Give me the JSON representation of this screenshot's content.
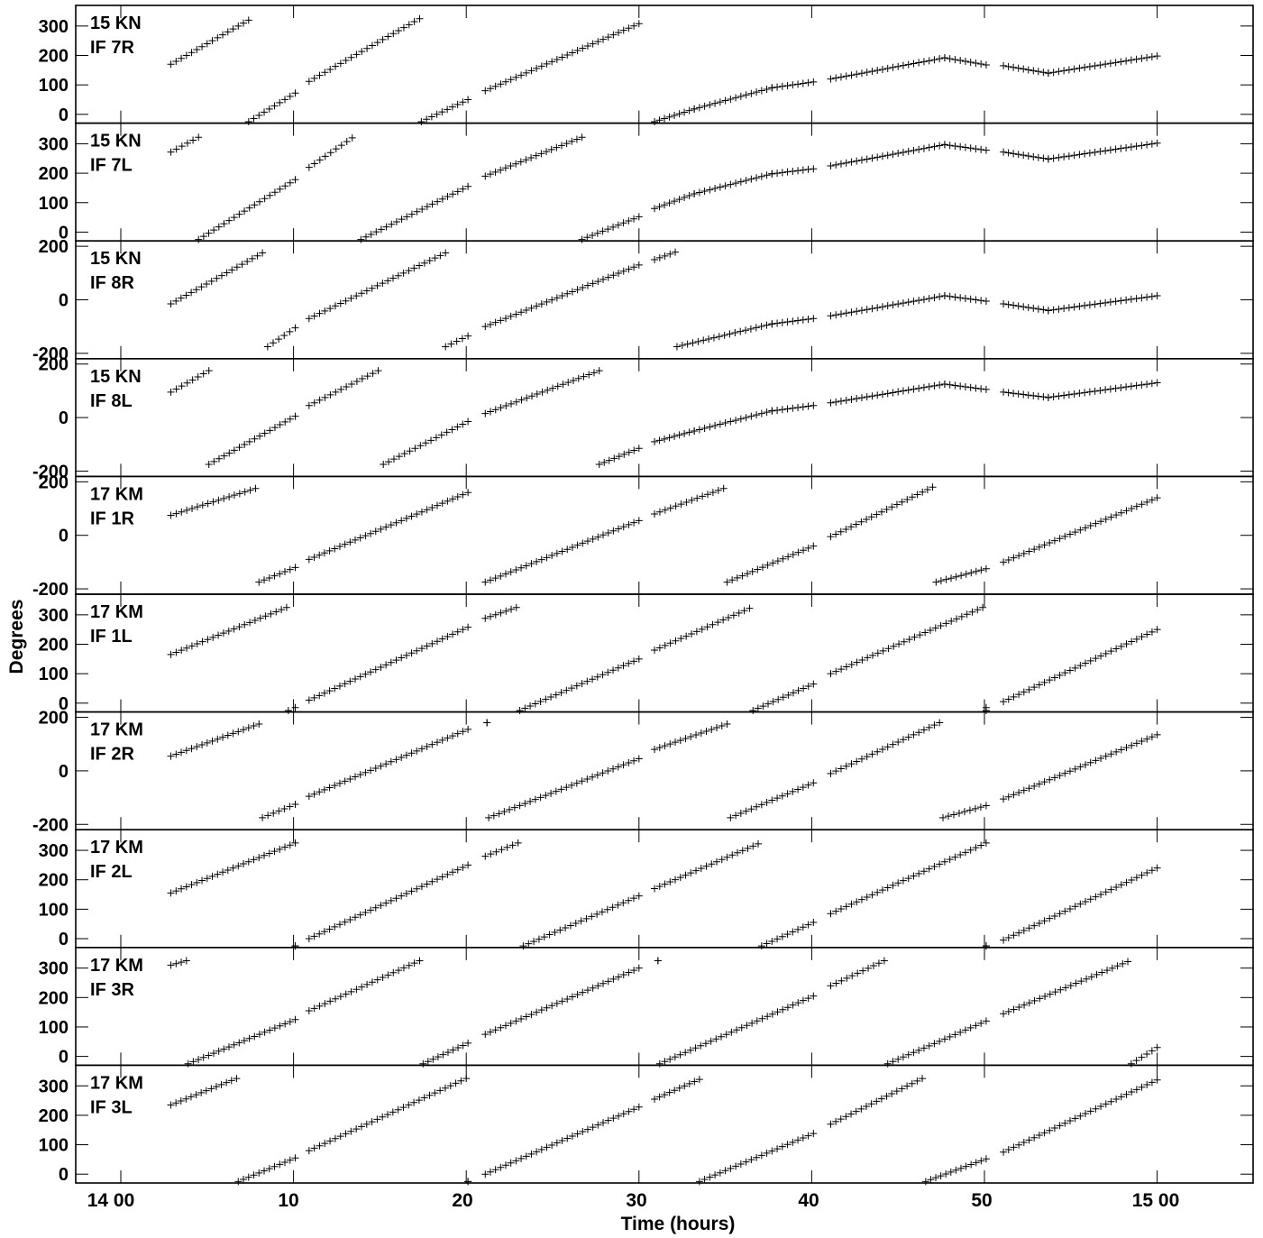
{
  "figure": {
    "title": "",
    "xlabel": "Time (hours)",
    "ylabel": "Degrees",
    "x_tick_labels": [
      "14 00",
      "10",
      "20",
      "30",
      "40",
      "50",
      "15 00"
    ],
    "colors": {
      "marks": "#000000",
      "axes": "#000000",
      "background": "#ffffff"
    }
  },
  "chart_data": [
    {
      "type": "scatter",
      "label1": "15 KN",
      "label2": "IF 7R",
      "ylim": [
        -30,
        370
      ],
      "yticks": [
        0,
        100,
        200,
        300
      ],
      "segments": [
        [
          2.9,
          7.4,
          170,
          320
        ],
        [
          7.4,
          10.1,
          -25,
          72
        ],
        [
          10.9,
          17.3,
          112,
          325
        ],
        [
          17.4,
          20.1,
          -25,
          50
        ],
        [
          21.1,
          30.0,
          80,
          308
        ],
        [
          30.9,
          33.2,
          -25,
          18
        ],
        [
          33.2,
          37.7,
          18,
          90
        ],
        [
          37.7,
          40.1,
          90,
          110
        ],
        [
          41.1,
          47.7,
          120,
          192
        ],
        [
          47.7,
          50.1,
          192,
          168
        ],
        [
          51.1,
          53.7,
          165,
          140
        ],
        [
          53.7,
          60.0,
          140,
          198
        ]
      ]
    },
    {
      "type": "scatter",
      "label1": "15 KN",
      "label2": "IF 7L",
      "ylim": [
        -30,
        370
      ],
      "yticks": [
        0,
        100,
        200,
        300
      ],
      "segments": [
        [
          2.9,
          4.5,
          272,
          322
        ],
        [
          4.5,
          10.1,
          -25,
          178
        ],
        [
          10.9,
          13.4,
          220,
          320
        ],
        [
          13.9,
          20.1,
          -25,
          155
        ],
        [
          21.1,
          26.7,
          190,
          322
        ],
        [
          26.7,
          30.0,
          -25,
          52
        ],
        [
          30.9,
          33.2,
          80,
          130
        ],
        [
          33.2,
          37.7,
          130,
          198
        ],
        [
          37.7,
          40.1,
          198,
          215
        ],
        [
          41.1,
          47.7,
          225,
          297
        ],
        [
          47.7,
          50.1,
          297,
          278
        ],
        [
          51.1,
          53.7,
          272,
          248
        ],
        [
          53.7,
          60.0,
          248,
          302
        ]
      ]
    },
    {
      "type": "scatter",
      "label1": "15 KN",
      "label2": "IF 8R",
      "ylim": [
        -220,
        220
      ],
      "yticks": [
        -200,
        0,
        200
      ],
      "segments": [
        [
          2.9,
          8.2,
          -15,
          175
        ],
        [
          8.5,
          10.1,
          -175,
          -105
        ],
        [
          10.9,
          18.8,
          -70,
          175
        ],
        [
          18.8,
          20.1,
          -175,
          -135
        ],
        [
          21.1,
          30.0,
          -100,
          130
        ],
        [
          30.9,
          32.1,
          150,
          178
        ],
        [
          32.2,
          37.7,
          -175,
          -90
        ],
        [
          37.7,
          40.1,
          -90,
          -70
        ],
        [
          41.1,
          47.7,
          -60,
          15
        ],
        [
          47.7,
          50.1,
          15,
          -5
        ],
        [
          51.1,
          53.7,
          -15,
          -40
        ],
        [
          53.7,
          60.0,
          -40,
          15
        ]
      ]
    },
    {
      "type": "scatter",
      "label1": "15 KN",
      "label2": "IF 8L",
      "ylim": [
        -220,
        220
      ],
      "yticks": [
        -200,
        0,
        200
      ],
      "segments": [
        [
          2.9,
          5.1,
          95,
          175
        ],
        [
          5.1,
          10.1,
          -175,
          5
        ],
        [
          10.9,
          14.9,
          45,
          175
        ],
        [
          15.2,
          20.1,
          -175,
          -15
        ],
        [
          21.1,
          27.7,
          15,
          175
        ],
        [
          27.7,
          30.0,
          -175,
          -115
        ],
        [
          30.9,
          33.2,
          -90,
          -50
        ],
        [
          33.2,
          37.7,
          -50,
          25
        ],
        [
          37.7,
          40.1,
          25,
          45
        ],
        [
          41.1,
          47.7,
          55,
          125
        ],
        [
          47.7,
          50.1,
          125,
          105
        ],
        [
          51.1,
          53.7,
          95,
          75
        ],
        [
          53.7,
          60.0,
          75,
          130
        ]
      ]
    },
    {
      "type": "scatter",
      "label1": "17 KM",
      "label2": "IF 1R",
      "ylim": [
        -220,
        220
      ],
      "yticks": [
        -200,
        0,
        200
      ],
      "segments": [
        [
          2.9,
          7.8,
          75,
          175
        ],
        [
          8.0,
          10.1,
          -175,
          -120
        ],
        [
          10.9,
          20.1,
          -90,
          160
        ],
        [
          21.1,
          30.0,
          -175,
          55
        ],
        [
          30.9,
          34.9,
          80,
          175
        ],
        [
          35.1,
          40.1,
          -175,
          -40
        ],
        [
          41.1,
          47.0,
          -5,
          180
        ],
        [
          47.2,
          50.1,
          -175,
          -125
        ],
        [
          51.1,
          60.0,
          -100,
          140
        ]
      ]
    },
    {
      "type": "scatter",
      "label1": "17 KM",
      "label2": "IF 1L",
      "ylim": [
        -30,
        370
      ],
      "yticks": [
        0,
        100,
        200,
        300
      ],
      "segments": [
        [
          2.9,
          9.6,
          165,
          325
        ],
        [
          9.7,
          10.1,
          -25,
          -15
        ],
        [
          10.9,
          20.1,
          10,
          258
        ],
        [
          21.1,
          22.9,
          288,
          325
        ],
        [
          23.1,
          30.0,
          -25,
          150
        ],
        [
          30.9,
          36.4,
          180,
          322
        ],
        [
          36.6,
          40.1,
          -25,
          65
        ],
        [
          41.1,
          49.9,
          100,
          325
        ],
        [
          50.1,
          50.1,
          -25,
          -15
        ],
        [
          51.1,
          60.0,
          5,
          250
        ]
      ]
    },
    {
      "type": "scatter",
      "label1": "17 KM",
      "label2": "IF 2R",
      "ylim": [
        -220,
        220
      ],
      "yticks": [
        -200,
        0,
        200
      ],
      "segments": [
        [
          2.9,
          8.0,
          55,
          175
        ],
        [
          8.2,
          10.1,
          -175,
          -125
        ],
        [
          10.9,
          20.1,
          -95,
          155
        ],
        [
          21.2,
          21.2,
          180,
          180
        ],
        [
          21.3,
          30.0,
          -175,
          45
        ],
        [
          30.9,
          35.1,
          80,
          175
        ],
        [
          35.3,
          40.1,
          -175,
          -45
        ],
        [
          41.1,
          47.4,
          -10,
          180
        ],
        [
          47.6,
          50.1,
          -175,
          -130
        ],
        [
          51.1,
          60.0,
          -105,
          135
        ]
      ]
    },
    {
      "type": "scatter",
      "label1": "17 KM",
      "label2": "IF 2L",
      "ylim": [
        -30,
        370
      ],
      "yticks": [
        0,
        100,
        200,
        300
      ],
      "segments": [
        [
          2.9,
          10.1,
          155,
          325
        ],
        [
          10.1,
          10.1,
          -25,
          -25
        ],
        [
          10.9,
          20.1,
          0,
          250
        ],
        [
          21.1,
          23.0,
          280,
          325
        ],
        [
          23.3,
          30.0,
          -25,
          145
        ],
        [
          30.9,
          36.9,
          170,
          322
        ],
        [
          37.1,
          40.1,
          -25,
          55
        ],
        [
          41.1,
          50.1,
          85,
          325
        ],
        [
          50.1,
          50.1,
          -25,
          -25
        ],
        [
          51.1,
          60.0,
          -5,
          240
        ]
      ]
    },
    {
      "type": "scatter",
      "label1": "17 KM",
      "label2": "IF 3R",
      "ylim": [
        -30,
        370
      ],
      "yticks": [
        0,
        100,
        200,
        300
      ],
      "segments": [
        [
          2.9,
          3.8,
          310,
          325
        ],
        [
          3.9,
          10.1,
          -25,
          125
        ],
        [
          10.9,
          17.3,
          155,
          325
        ],
        [
          17.5,
          20.1,
          -25,
          45
        ],
        [
          21.1,
          30.0,
          75,
          300
        ],
        [
          31.1,
          31.1,
          325,
          325
        ],
        [
          31.2,
          40.1,
          -25,
          205
        ],
        [
          41.1,
          44.2,
          240,
          325
        ],
        [
          44.4,
          50.1,
          -25,
          120
        ],
        [
          51.1,
          58.3,
          145,
          322
        ],
        [
          58.5,
          60.0,
          -25,
          30
        ]
      ]
    },
    {
      "type": "scatter",
      "label1": "17 KM",
      "label2": "IF 3L",
      "ylim": [
        -30,
        370
      ],
      "yticks": [
        0,
        100,
        200,
        300
      ],
      "segments": [
        [
          2.9,
          6.7,
          235,
          325
        ],
        [
          6.8,
          10.1,
          -25,
          55
        ],
        [
          10.9,
          20.0,
          80,
          325
        ],
        [
          20.1,
          20.1,
          -25,
          -25
        ],
        [
          21.1,
          30.0,
          0,
          228
        ],
        [
          30.9,
          33.5,
          255,
          322
        ],
        [
          33.5,
          40.1,
          -25,
          138
        ],
        [
          41.1,
          46.4,
          170,
          325
        ],
        [
          46.6,
          50.1,
          -25,
          52
        ],
        [
          51.1,
          60.0,
          75,
          320
        ]
      ]
    }
  ]
}
